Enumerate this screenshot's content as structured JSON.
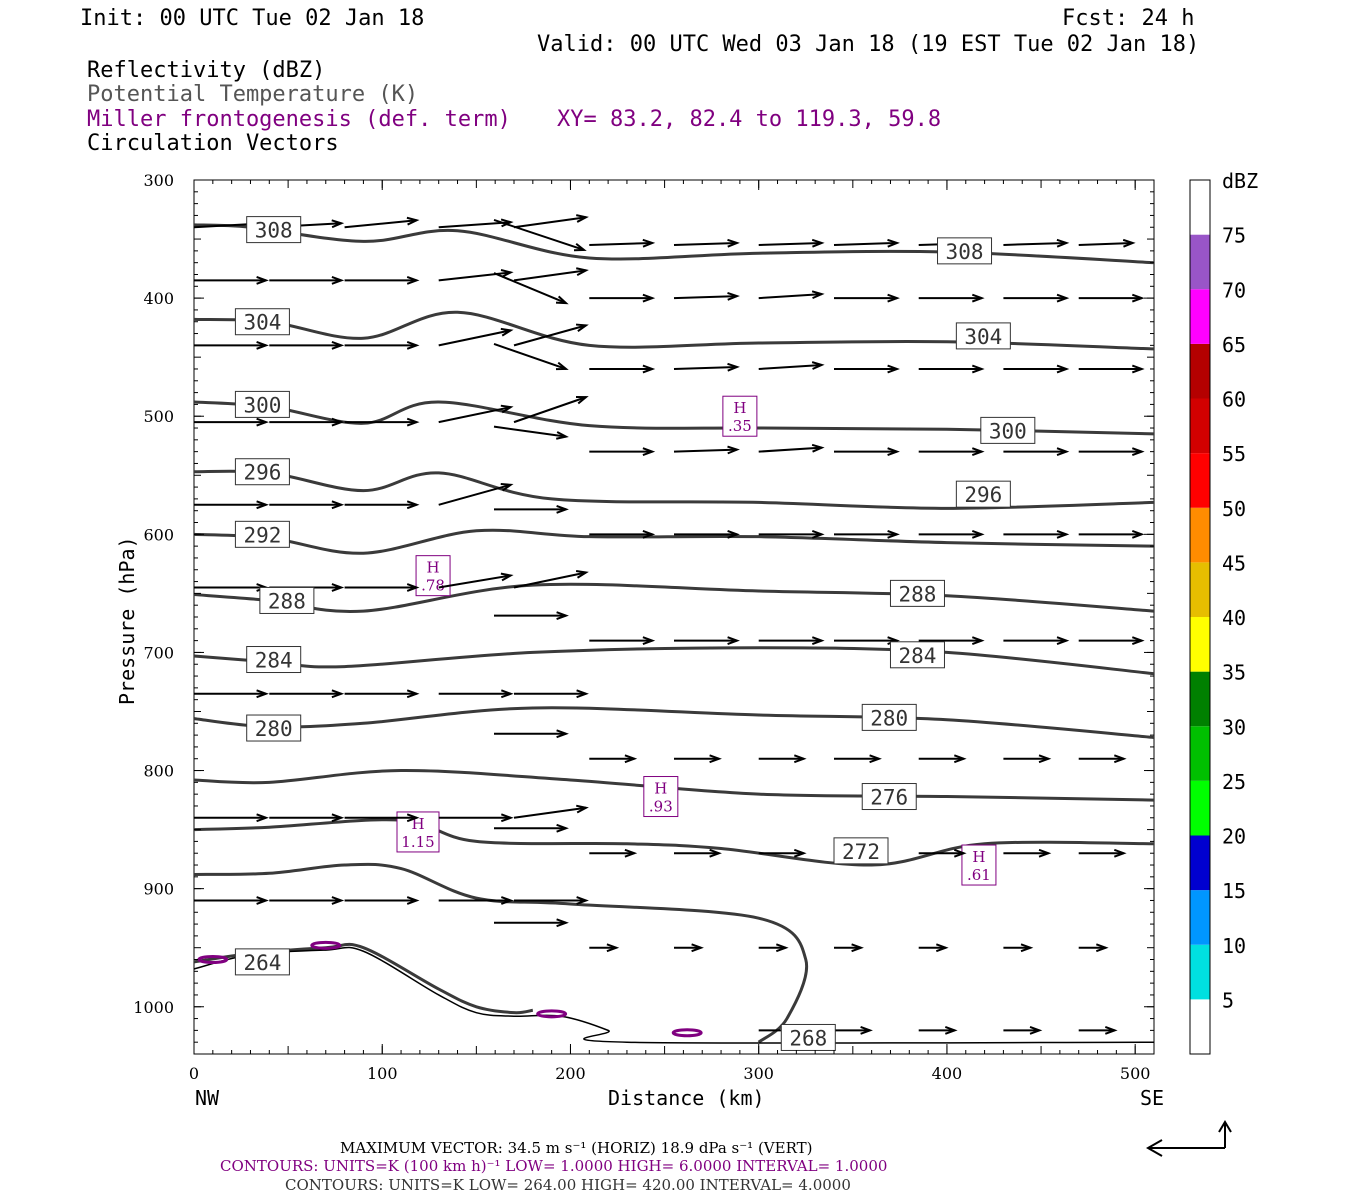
{
  "header": {
    "init": "Init: 00 UTC Tue 02 Jan 18",
    "fcst": "Fcst:   24 h",
    "valid": "Valid: 00 UTC Wed 03 Jan 18 (19 EST Tue 02 Jan 18)",
    "field1": "Reflectivity (dBZ)",
    "field2": "Potential Temperature (K)",
    "field3": "Miller frontogenesis (def. term)",
    "xy": "XY=  83.2, 82.4 to 119.3, 59.8",
    "field4": "Circulation Vectors"
  },
  "colors": {
    "theta": "#3a3a3a",
    "fronto": "#800080",
    "text": "#000000",
    "gray_text": "#4a4a4a"
  },
  "chart_data": {
    "type": "cross-section",
    "xlabel": "Distance (km)",
    "ylabel": "Pressure (hPa)",
    "xlim": [
      0,
      510
    ],
    "ylim": [
      300,
      1040
    ],
    "x_ticks": [
      "0",
      "100",
      "200",
      "300",
      "400",
      "500"
    ],
    "y_ticks": [
      "300",
      "400",
      "500",
      "600",
      "700",
      "800",
      "900",
      "1000"
    ],
    "x_end_labels": {
      "left": "NW",
      "right": "SE"
    },
    "theta_contours": [
      {
        "label": "308",
        "points": [
          [
            0,
            338
          ],
          [
            30,
            340
          ],
          [
            90,
            352
          ],
          [
            140,
            343
          ],
          [
            210,
            366
          ],
          [
            300,
            362
          ],
          [
            400,
            361
          ],
          [
            510,
            370
          ]
        ],
        "label_pos": [
          28,
          342
        ]
      },
      {
        "label": "308",
        "points": [
          [
            0,
            300
          ],
          [
            0,
            300
          ]
        ],
        "label_pos": [
          395,
          360
        ],
        "hidden": true
      },
      {
        "label": "304",
        "points": [
          [
            0,
            418
          ],
          [
            40,
            420
          ],
          [
            90,
            434
          ],
          [
            140,
            412
          ],
          [
            210,
            440
          ],
          [
            300,
            438
          ],
          [
            400,
            437
          ],
          [
            510,
            443
          ]
        ],
        "label_pos": [
          22,
          420
        ]
      },
      {
        "label": "304",
        "points": [
          [
            0,
            300
          ],
          [
            0,
            300
          ]
        ],
        "label_pos": [
          405,
          432
        ],
        "hidden": true
      },
      {
        "label": "300",
        "points": [
          [
            0,
            488
          ],
          [
            40,
            492
          ],
          [
            90,
            506
          ],
          [
            130,
            488
          ],
          [
            210,
            508
          ],
          [
            300,
            510
          ],
          [
            400,
            511
          ],
          [
            510,
            515
          ]
        ],
        "label_pos": [
          22,
          490
        ]
      },
      {
        "label": "300",
        "points": [
          [
            0,
            300
          ],
          [
            0,
            300
          ]
        ],
        "label_pos": [
          418,
          512
        ],
        "hidden": true
      },
      {
        "label": "296",
        "points": [
          [
            0,
            547
          ],
          [
            40,
            548
          ],
          [
            90,
            563
          ],
          [
            130,
            548
          ],
          [
            190,
            570
          ],
          [
            300,
            573
          ],
          [
            400,
            578
          ],
          [
            510,
            573
          ]
        ],
        "label_pos": [
          22,
          547
        ]
      },
      {
        "label": "296",
        "points": [
          [
            0,
            300
          ],
          [
            0,
            300
          ]
        ],
        "label_pos": [
          405,
          566
        ],
        "hidden": true
      },
      {
        "label": "292",
        "points": [
          [
            0,
            600
          ],
          [
            40,
            603
          ],
          [
            90,
            616
          ],
          [
            150,
            597
          ],
          [
            210,
            602
          ],
          [
            300,
            602
          ],
          [
            400,
            607
          ],
          [
            510,
            610
          ]
        ],
        "label_pos": [
          22,
          600
        ]
      },
      {
        "label": "288",
        "points": [
          [
            0,
            651
          ],
          [
            40,
            656
          ],
          [
            90,
            665
          ],
          [
            180,
            643
          ],
          [
            300,
            648
          ],
          [
            400,
            652
          ],
          [
            510,
            665
          ]
        ],
        "label_pos": [
          35,
          656
        ]
      },
      {
        "label": "288",
        "points": [
          [
            0,
            300
          ],
          [
            0,
            300
          ]
        ],
        "label_pos": [
          370,
          650
        ],
        "hidden": true
      },
      {
        "label": "284",
        "points": [
          [
            0,
            703
          ],
          [
            40,
            708
          ],
          [
            80,
            712
          ],
          [
            180,
            700
          ],
          [
            300,
            696
          ],
          [
            400,
            700
          ],
          [
            510,
            718
          ]
        ],
        "label_pos": [
          28,
          706
        ]
      },
      {
        "label": "284",
        "points": [
          [
            0,
            300
          ],
          [
            0,
            300
          ]
        ],
        "label_pos": [
          370,
          702
        ],
        "hidden": true
      },
      {
        "label": "280",
        "points": [
          [
            0,
            756
          ],
          [
            40,
            763
          ],
          [
            90,
            760
          ],
          [
            180,
            747
          ],
          [
            300,
            753
          ],
          [
            400,
            757
          ],
          [
            510,
            772
          ]
        ],
        "label_pos": [
          28,
          764
        ]
      },
      {
        "label": "280",
        "points": [
          [
            0,
            300
          ],
          [
            0,
            300
          ]
        ],
        "label_pos": [
          355,
          755
        ],
        "hidden": true
      },
      {
        "label": "276",
        "points": [
          [
            0,
            808
          ],
          [
            40,
            810
          ],
          [
            110,
            800
          ],
          [
            200,
            808
          ],
          [
            300,
            820
          ],
          [
            400,
            822
          ],
          [
            510,
            825
          ]
        ],
        "label_pos": [
          355,
          822
        ]
      },
      {
        "label": "272",
        "points": [
          [
            0,
            850
          ],
          [
            40,
            848
          ],
          [
            110,
            842
          ],
          [
            150,
            860
          ],
          [
            230,
            862
          ],
          [
            280,
            866
          ],
          [
            360,
            880
          ],
          [
            420,
            862
          ],
          [
            510,
            862
          ]
        ],
        "label_pos": [
          340,
          868
        ]
      },
      {
        "label": "268",
        "points": [
          [
            0,
            888
          ],
          [
            40,
            887
          ],
          [
            80,
            880
          ],
          [
            110,
            883
          ],
          [
            150,
            908
          ],
          [
            200,
            913
          ],
          [
            300,
            925
          ],
          [
            325,
            960
          ],
          [
            315,
            1010
          ],
          [
            300,
            1030
          ]
        ],
        "label_pos": [
          312,
          1026
        ]
      },
      {
        "label": "264",
        "points": [
          [
            0,
            962
          ],
          [
            30,
            955
          ],
          [
            70,
            950
          ],
          [
            90,
            950
          ],
          [
            130,
            985
          ],
          [
            150,
            1000
          ],
          [
            170,
            1005
          ],
          [
            180,
            1003
          ]
        ],
        "label_pos": [
          22,
          962
        ]
      }
    ],
    "terrain": [
      [
        0,
        968
      ],
      [
        30,
        956
      ],
      [
        70,
        952
      ],
      [
        90,
        953
      ],
      [
        130,
        990
      ],
      [
        150,
        1005
      ],
      [
        170,
        1008
      ],
      [
        195,
        1008
      ],
      [
        220,
        1020
      ],
      [
        230,
        1030
      ],
      [
        510,
        1030
      ]
    ],
    "fronto_maxima": [
      {
        "label": "H",
        "value": ".35",
        "x": 290,
        "p": 500
      },
      {
        "label": "H",
        "value": ".78",
        "x": 127,
        "p": 635
      },
      {
        "label": "H",
        "value": ".93",
        "x": 248,
        "p": 822
      },
      {
        "label": "H",
        "value": "1.15",
        "x": 119,
        "p": 852
      },
      {
        "label": "H",
        "value": ".61",
        "x": 417,
        "p": 880
      }
    ],
    "fronto_blobs": [
      [
        10,
        960
      ],
      [
        40,
        955
      ],
      [
        70,
        948
      ],
      [
        190,
        1006
      ],
      [
        262,
        1022
      ]
    ],
    "vectors": [
      {
        "p": 340,
        "x": [
          0,
          40,
          80,
          130,
          170
        ],
        "dx": [
          40,
          40,
          40,
          40,
          40
        ],
        "dy": [
          -4,
          -4,
          -7,
          -5,
          -10
        ]
      },
      {
        "p": 355,
        "x": [
          170,
          210,
          255,
          300,
          340,
          385,
          430,
          470
        ],
        "dx": [
          -50,
          35,
          35,
          35,
          35,
          35,
          35,
          30
        ],
        "dy": [
          -30,
          -2,
          -2,
          -2,
          -2,
          -2,
          -2,
          -2
        ]
      },
      {
        "p": 385,
        "x": [
          0,
          40,
          80,
          130,
          170
        ],
        "dx": [
          40,
          40,
          40,
          40,
          40
        ],
        "dy": [
          0,
          0,
          0,
          -8,
          -10
        ]
      },
      {
        "p": 400,
        "x": [
          170,
          210,
          255,
          300,
          340,
          385,
          430,
          470
        ],
        "dx": [
          -40,
          35,
          35,
          35,
          35,
          35,
          35,
          35
        ],
        "dy": [
          -30,
          0,
          -2,
          -4,
          0,
          0,
          0,
          0
        ]
      },
      {
        "p": 440,
        "x": [
          0,
          40,
          80,
          130,
          170
        ],
        "dx": [
          40,
          40,
          40,
          40,
          40
        ],
        "dy": [
          0,
          0,
          0,
          -15,
          -20
        ]
      },
      {
        "p": 460,
        "x": [
          170,
          210,
          255,
          300,
          340,
          385,
          430,
          470
        ],
        "dx": [
          -40,
          35,
          35,
          35,
          35,
          35,
          35,
          35
        ],
        "dy": [
          -25,
          0,
          -2,
          -4,
          0,
          0,
          0,
          0
        ]
      },
      {
        "p": 505,
        "x": [
          0,
          40,
          80,
          130,
          170
        ],
        "dx": [
          40,
          40,
          40,
          40,
          40
        ],
        "dy": [
          0,
          0,
          0,
          -15,
          -25
        ]
      },
      {
        "p": 530,
        "x": [
          170,
          210,
          255,
          300,
          340,
          385,
          430,
          470
        ],
        "dx": [
          -40,
          35,
          35,
          35,
          35,
          35,
          35,
          35
        ],
        "dy": [
          -10,
          0,
          -2,
          -4,
          0,
          0,
          0,
          0
        ]
      },
      {
        "p": 575,
        "x": [
          0,
          40,
          80,
          130
        ],
        "dx": [
          40,
          40,
          40,
          40
        ],
        "dy": [
          0,
          0,
          0,
          -20
        ]
      },
      {
        "p": 600,
        "x": [
          170,
          210,
          255,
          300,
          340,
          385,
          430,
          470
        ],
        "dx": [
          -40,
          35,
          35,
          35,
          35,
          35,
          35,
          35
        ],
        "dy": [
          0,
          0,
          0,
          0,
          0,
          0,
          0,
          0
        ]
      },
      {
        "p": 645,
        "x": [
          0,
          40,
          80,
          130,
          170
        ],
        "dx": [
          40,
          40,
          40,
          40,
          40
        ],
        "dy": [
          0,
          0,
          0,
          -12,
          -15
        ]
      },
      {
        "p": 690,
        "x": [
          170,
          210,
          255,
          300,
          340,
          385,
          430,
          470
        ],
        "dx": [
          -40,
          35,
          35,
          35,
          35,
          35,
          35,
          35
        ],
        "dy": [
          0,
          0,
          0,
          0,
          0,
          0,
          0,
          0
        ]
      },
      {
        "p": 735,
        "x": [
          0,
          40,
          80,
          130,
          170
        ],
        "dx": [
          40,
          40,
          40,
          40,
          40
        ],
        "dy": [
          0,
          0,
          0,
          0,
          0
        ]
      },
      {
        "p": 790,
        "x": [
          170,
          210,
          255,
          300,
          340,
          385,
          430,
          470
        ],
        "dx": [
          -40,
          25,
          25,
          25,
          25,
          25,
          25,
          25
        ],
        "dy": [
          0,
          0,
          0,
          0,
          0,
          0,
          0,
          0
        ]
      },
      {
        "p": 840,
        "x": [
          0,
          40,
          80,
          130,
          170
        ],
        "dx": [
          40,
          40,
          40,
          40,
          40
        ],
        "dy": [
          0,
          0,
          0,
          0,
          -10
        ]
      },
      {
        "p": 870,
        "x": [
          170,
          210,
          255,
          300,
          340,
          385,
          430,
          470
        ],
        "dx": [
          -40,
          25,
          25,
          25,
          25,
          25,
          25,
          25
        ],
        "dy": [
          0,
          0,
          0,
          0,
          0,
          0,
          0,
          0
        ]
      },
      {
        "p": 910,
        "x": [
          0,
          40,
          80,
          130,
          170
        ],
        "dx": [
          40,
          40,
          40,
          40,
          40
        ],
        "dy": [
          0,
          0,
          0,
          0,
          0
        ]
      },
      {
        "p": 950,
        "x": [
          170,
          210,
          255,
          300,
          340,
          385,
          430,
          470
        ],
        "dx": [
          -40,
          15,
          15,
          15,
          15,
          15,
          15,
          15
        ],
        "dy": [
          0,
          0,
          0,
          0,
          0,
          0,
          0,
          0
        ]
      },
      {
        "p": 1020,
        "x": [
          300,
          340,
          385,
          430,
          470
        ],
        "dx": [
          20,
          20,
          20,
          20,
          20
        ],
        "dy": [
          0,
          0,
          0,
          0,
          0
        ]
      }
    ],
    "colorbar": {
      "title": "dBZ",
      "levels": [
        "5",
        "10",
        "15",
        "20",
        "25",
        "30",
        "35",
        "40",
        "45",
        "50",
        "55",
        "60",
        "65",
        "70",
        "75"
      ],
      "colors": [
        "#ffffff",
        "#00e0e0",
        "#0096ff",
        "#0000d0",
        "#00ff00",
        "#00c000",
        "#008000",
        "#ffff00",
        "#e6be00",
        "#ff8c00",
        "#ff0000",
        "#d20000",
        "#b40000",
        "#ff00ff",
        "#9955c8",
        "#ffffff"
      ]
    }
  },
  "footer": {
    "line1": "MAXIMUM VECTOR:  34.5 m s⁻¹ (HORIZ)          18.9 dPa s⁻¹ (VERT)",
    "line2": "CONTOURS:  UNITS=K (100 km h)⁻¹  LOW=   1.0000        HIGH=   6.0000        INTERVAL=    1.0000",
    "line3": "CONTOURS:  UNITS=K  LOW=   264.00        HIGH=   420.00        INTERVAL=     4.0000"
  }
}
